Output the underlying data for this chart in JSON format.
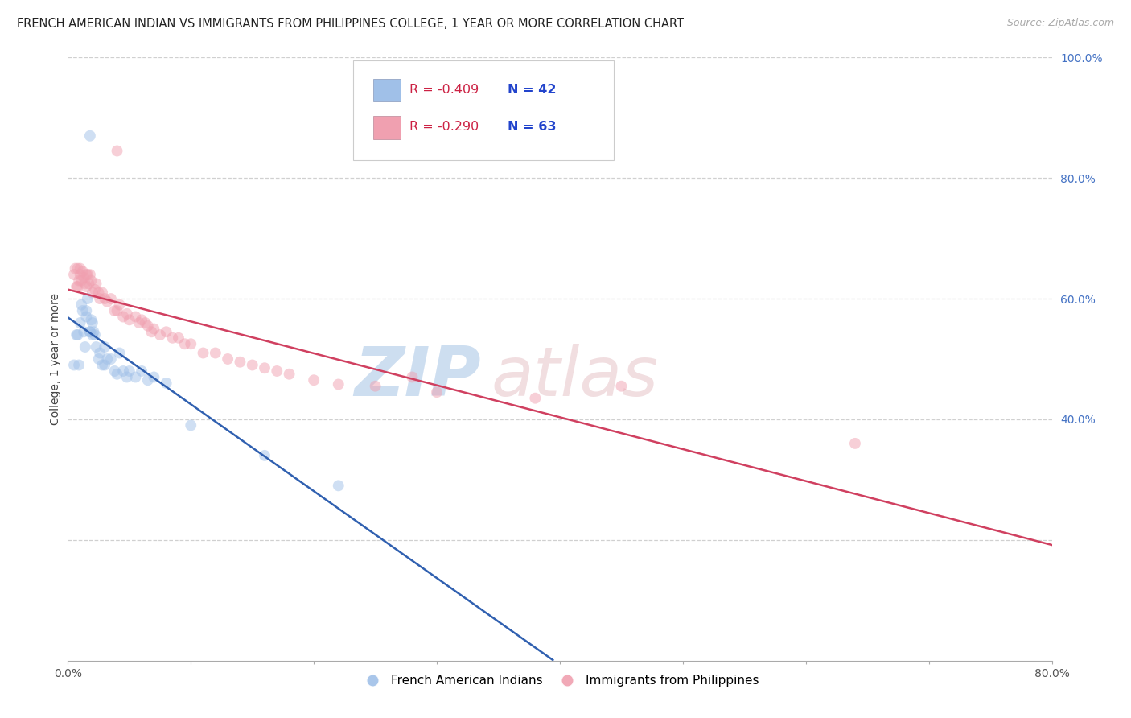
{
  "title": "FRENCH AMERICAN INDIAN VS IMMIGRANTS FROM PHILIPPINES COLLEGE, 1 YEAR OR MORE CORRELATION CHART",
  "source": "Source: ZipAtlas.com",
  "ylabel": "College, 1 year or more",
  "xlim": [
    0.0,
    0.8
  ],
  "ylim": [
    0.0,
    1.0
  ],
  "series1_label": "French American Indians",
  "series1_color": "#a0c0e8",
  "series1_line_color": "#3060b0",
  "series1_R": "-0.409",
  "series1_N": "42",
  "series1_x": [
    0.005,
    0.007,
    0.008,
    0.009,
    0.01,
    0.011,
    0.012,
    0.013,
    0.014,
    0.015,
    0.015,
    0.016,
    0.018,
    0.018,
    0.019,
    0.02,
    0.02,
    0.021,
    0.022,
    0.023,
    0.025,
    0.026,
    0.028,
    0.03,
    0.03,
    0.032,
    0.035,
    0.038,
    0.04,
    0.042,
    0.045,
    0.048,
    0.05,
    0.055,
    0.06,
    0.065,
    0.07,
    0.08,
    0.1,
    0.16,
    0.22,
    0.018
  ],
  "series1_y": [
    0.49,
    0.54,
    0.54,
    0.49,
    0.56,
    0.59,
    0.58,
    0.545,
    0.52,
    0.58,
    0.57,
    0.6,
    0.545,
    0.545,
    0.565,
    0.54,
    0.56,
    0.545,
    0.54,
    0.52,
    0.5,
    0.51,
    0.49,
    0.49,
    0.52,
    0.5,
    0.5,
    0.48,
    0.475,
    0.51,
    0.48,
    0.47,
    0.48,
    0.47,
    0.48,
    0.465,
    0.47,
    0.46,
    0.39,
    0.34,
    0.29,
    0.87
  ],
  "series2_label": "Immigrants from Philippines",
  "series2_color": "#f0a0b0",
  "series2_line_color": "#d04060",
  "series2_R": "-0.290",
  "series2_N": "63",
  "series2_x": [
    0.005,
    0.006,
    0.007,
    0.008,
    0.008,
    0.009,
    0.01,
    0.01,
    0.011,
    0.012,
    0.013,
    0.014,
    0.015,
    0.015,
    0.016,
    0.017,
    0.018,
    0.019,
    0.02,
    0.022,
    0.023,
    0.025,
    0.026,
    0.028,
    0.03,
    0.032,
    0.035,
    0.038,
    0.04,
    0.042,
    0.045,
    0.048,
    0.05,
    0.055,
    0.058,
    0.06,
    0.063,
    0.065,
    0.068,
    0.07,
    0.075,
    0.08,
    0.085,
    0.09,
    0.095,
    0.1,
    0.11,
    0.12,
    0.13,
    0.14,
    0.15,
    0.16,
    0.17,
    0.18,
    0.2,
    0.22,
    0.25,
    0.3,
    0.38,
    0.45,
    0.04,
    0.28,
    0.64
  ],
  "series2_y": [
    0.64,
    0.65,
    0.62,
    0.62,
    0.65,
    0.63,
    0.65,
    0.64,
    0.63,
    0.645,
    0.635,
    0.625,
    0.64,
    0.62,
    0.64,
    0.625,
    0.64,
    0.63,
    0.61,
    0.615,
    0.625,
    0.61,
    0.6,
    0.61,
    0.6,
    0.595,
    0.6,
    0.58,
    0.58,
    0.59,
    0.57,
    0.575,
    0.565,
    0.57,
    0.56,
    0.565,
    0.56,
    0.555,
    0.545,
    0.55,
    0.54,
    0.545,
    0.535,
    0.535,
    0.525,
    0.525,
    0.51,
    0.51,
    0.5,
    0.495,
    0.49,
    0.485,
    0.48,
    0.475,
    0.465,
    0.458,
    0.455,
    0.445,
    0.435,
    0.455,
    0.845,
    0.47,
    0.36
  ],
  "legend_R1": "-0.409",
  "legend_N1": "42",
  "legend_R2": "-0.290",
  "legend_N2": "63",
  "background_color": "#ffffff",
  "grid_color": "#d0d0d0",
  "title_fontsize": 10.5,
  "axis_label_fontsize": 10,
  "tick_fontsize": 10,
  "marker_size": 100,
  "marker_alpha": 0.5,
  "line_width": 1.8
}
